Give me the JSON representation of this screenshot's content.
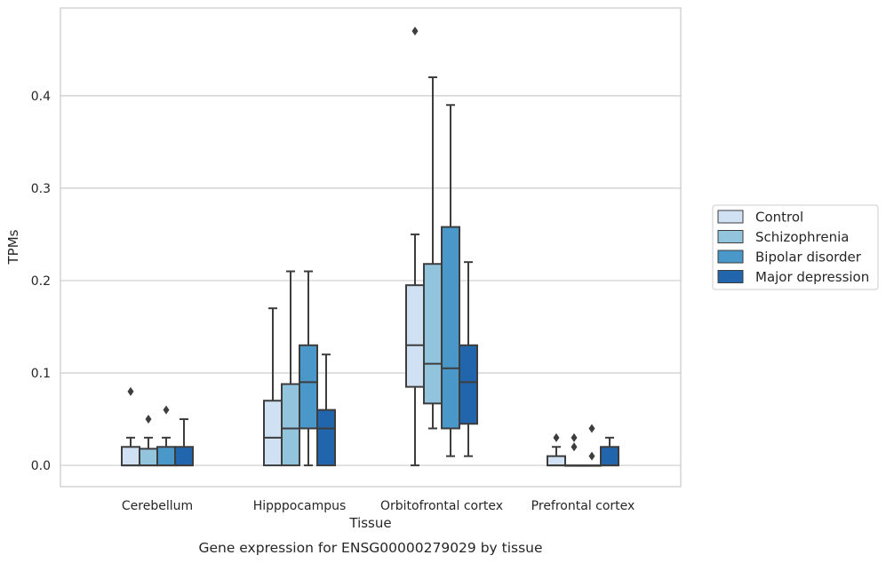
{
  "chart_data": {
    "type": "box",
    "title": "",
    "caption": "Gene expression for ENSG00000279029 by tissue",
    "xlabel": "Tissue",
    "ylabel": "TPMs",
    "ylim": [
      -0.023,
      0.495
    ],
    "yticks": [
      "0.0",
      "0.1",
      "0.2",
      "0.3",
      "0.4"
    ],
    "ytick_values": [
      0,
      0.1,
      0.2,
      0.3,
      0.4
    ],
    "grid": "horizontal",
    "legend_position": "right",
    "categories": [
      "Cerebellum",
      "Hipppocampus",
      "Orbitofrontal cortex",
      "Prefrontal cortex"
    ],
    "series": [
      {
        "name": "Control",
        "color": "#cfe1f2",
        "boxes": [
          {
            "min": 0,
            "q1": 0,
            "median": 0,
            "q3": 0.02,
            "max": 0.03,
            "outliers": [
              0.08
            ]
          },
          {
            "min": 0,
            "q1": 0,
            "median": 0.03,
            "q3": 0.07,
            "max": 0.17,
            "outliers": []
          },
          {
            "min": 0,
            "q1": 0.085,
            "median": 0.13,
            "q3": 0.195,
            "max": 0.25,
            "outliers": [
              0.47
            ]
          },
          {
            "min": 0,
            "q1": 0,
            "median": 0,
            "q3": 0.01,
            "max": 0.02,
            "outliers": [
              0.03
            ]
          }
        ]
      },
      {
        "name": "Schizophrenia",
        "color": "#93c4de",
        "boxes": [
          {
            "min": 0,
            "q1": 0,
            "median": 0,
            "q3": 0.018,
            "max": 0.03,
            "outliers": [
              0.05
            ]
          },
          {
            "min": 0,
            "q1": 0,
            "median": 0.04,
            "q3": 0.088,
            "max": 0.21,
            "outliers": []
          },
          {
            "min": 0.04,
            "q1": 0.067,
            "median": 0.11,
            "q3": 0.218,
            "max": 0.42,
            "outliers": []
          },
          {
            "min": 0,
            "q1": 0,
            "median": 0,
            "q3": 0,
            "max": 0,
            "outliers": [
              0.02,
              0.03
            ]
          }
        ]
      },
      {
        "name": "Bipolar disorder",
        "color": "#4a98c9",
        "boxes": [
          {
            "min": 0,
            "q1": 0,
            "median": 0,
            "q3": 0.02,
            "max": 0.03,
            "outliers": [
              0.06
            ]
          },
          {
            "min": 0,
            "q1": 0.04,
            "median": 0.09,
            "q3": 0.13,
            "max": 0.21,
            "outliers": []
          },
          {
            "min": 0.01,
            "q1": 0.04,
            "median": 0.105,
            "q3": 0.258,
            "max": 0.39,
            "outliers": []
          },
          {
            "min": 0,
            "q1": 0,
            "median": 0,
            "q3": 0,
            "max": 0,
            "outliers": [
              0.01,
              0.04
            ]
          }
        ]
      },
      {
        "name": "Major depression",
        "color": "#2166ac",
        "boxes": [
          {
            "min": 0,
            "q1": 0,
            "median": 0,
            "q3": 0.02,
            "max": 0.05,
            "outliers": []
          },
          {
            "min": 0,
            "q1": 0,
            "median": 0.04,
            "q3": 0.06,
            "max": 0.12,
            "outliers": []
          },
          {
            "min": 0.01,
            "q1": 0.045,
            "median": 0.09,
            "q3": 0.13,
            "max": 0.22,
            "outliers": []
          },
          {
            "min": 0,
            "q1": 0,
            "median": 0,
            "q3": 0.02,
            "max": 0.03,
            "outliers": []
          }
        ]
      }
    ]
  }
}
